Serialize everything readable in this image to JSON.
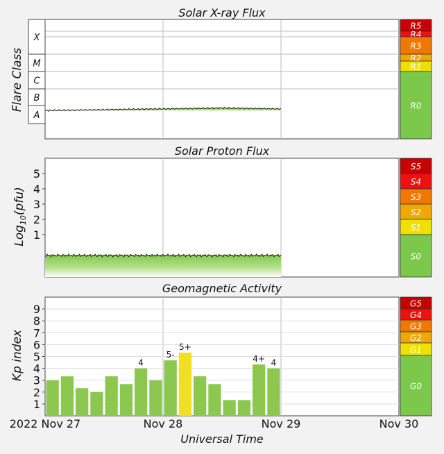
{
  "chart_data": [
    {
      "type": "area",
      "title": "Solar X-ray Flux",
      "ylabel": "Flare Class",
      "flare_classes": [
        "X",
        "M",
        "C",
        "B",
        "A"
      ],
      "scale_labels": [
        "R5",
        "R4",
        "R3",
        "R2",
        "R1",
        "R0"
      ],
      "scale_colors": [
        "#c80000",
        "#f01010",
        "#f07800",
        "#f0a800",
        "#f0e000",
        "#7cc84a"
      ],
      "series": [
        {
          "level": "B",
          "x": [
            0,
            0.5,
            1,
            1.5,
            2
          ],
          "values": [
            3.2,
            3.25,
            3.3,
            3.35,
            3.3
          ]
        }
      ]
    },
    {
      "type": "area",
      "title": "Solar Proton Flux",
      "ylabel": "Log10(pfu)",
      "ylabel_main": "Log",
      "ylabel_sub": "10",
      "ylabel_tail": "(pfu)",
      "yticks": [
        "1",
        "2",
        "3",
        "4",
        "5"
      ],
      "scale_labels": [
        "S5",
        "S4",
        "S3",
        "S2",
        "S1",
        "S0"
      ],
      "scale_colors": [
        "#c80000",
        "#f01010",
        "#f07800",
        "#f0a800",
        "#f0e000",
        "#7cc84a"
      ],
      "series": [
        {
          "x": [
            0,
            0.5,
            1,
            1.5,
            2
          ],
          "values": [
            -0.1,
            -0.1,
            -0.1,
            -0.1,
            -0.1
          ]
        }
      ]
    },
    {
      "type": "bar",
      "title": "Geomagnetic Activity",
      "ylabel": "Kp index",
      "ylim": [
        0,
        10
      ],
      "yticks": [
        "1",
        "2",
        "3",
        "4",
        "5",
        "6",
        "7",
        "8",
        "9"
      ],
      "scale_labels": [
        "G5",
        "G4",
        "G3",
        "G2",
        "G1",
        "G0"
      ],
      "scale_colors": [
        "#c80000",
        "#f01010",
        "#f07800",
        "#f0a800",
        "#f0e000",
        "#7cc84a"
      ],
      "values": [
        3.0,
        3.33,
        2.33,
        2.0,
        3.33,
        2.67,
        4.0,
        3.0,
        4.67,
        5.33,
        3.33,
        2.67,
        1.33,
        1.33,
        4.33,
        4.0
      ],
      "bar_colors": [
        "#8cc850",
        "#8cc850",
        "#8cc850",
        "#8cc850",
        "#8cc850",
        "#8cc850",
        "#8cc850",
        "#8cc850",
        "#8cc850",
        "#f0e020",
        "#8cc850",
        "#8cc850",
        "#8cc850",
        "#8cc850",
        "#8cc850",
        "#8cc850"
      ],
      "bar_labels": [
        "",
        "",
        "",
        "",
        "",
        "",
        "4",
        "",
        "5-",
        "5+",
        "",
        "",
        "",
        "",
        "4+",
        "4"
      ]
    }
  ],
  "x_axis": {
    "label": "Universal Time",
    "dates": [
      "2022 Nov 27",
      "Nov 28",
      "Nov 29",
      "Nov 30"
    ]
  }
}
